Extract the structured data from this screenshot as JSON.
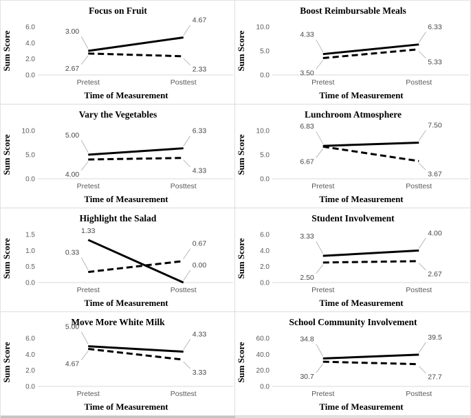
{
  "figure": {
    "description": "Grid of eight pretest-posttest line charts",
    "rows": 4,
    "cols": 2
  },
  "style": {
    "background": "#ffffff",
    "line_color": "#000000",
    "title_color": "#000000",
    "axis_label_color": "#000000",
    "tick_color": "#595959",
    "data_label_color": "#474747",
    "axis_line_color": "#d9d9d9",
    "leader_line_color": "#b7b7b7",
    "panel_border_color": "#dcdcdc",
    "bottom_bar_left": "#c4c4c4",
    "bottom_bar_right": "#e1e1e1"
  },
  "chart_data": [
    {
      "type": "line",
      "title": "Focus on Fruit",
      "ylabel": "Sum Score",
      "xlabel": "Time of Measurement",
      "categories": [
        "Pretest",
        "Posttest"
      ],
      "ylim": [
        0,
        6
      ],
      "yticks": {
        "values": [
          0,
          2,
          4,
          6
        ],
        "labels": [
          "0.0",
          "2.0",
          "4.0",
          "6.0"
        ]
      },
      "grid": false,
      "legend": "none",
      "series": [
        {
          "name": "solid line",
          "style": "solid",
          "values": [
            3.0,
            4.67
          ],
          "labels": [
            "3.00",
            "4.67"
          ],
          "label_pos": [
            "al",
            "ar"
          ]
        },
        {
          "name": "dashed line",
          "style": "dashed",
          "values": [
            2.67,
            2.33
          ],
          "labels": [
            "2.67",
            "2.33"
          ],
          "label_pos": [
            "bl",
            "br"
          ]
        }
      ]
    },
    {
      "type": "line",
      "title": "Boost Reimbursable Meals",
      "ylabel": "Sum Score",
      "xlabel": "Time of Measurement",
      "categories": [
        "Pretest",
        "Posttest"
      ],
      "ylim": [
        0,
        10
      ],
      "yticks": {
        "values": [
          0,
          5,
          10
        ],
        "labels": [
          "0.0",
          "5.0",
          "10.0"
        ]
      },
      "grid": false,
      "legend": "none",
      "series": [
        {
          "name": "solid line",
          "style": "solid",
          "values": [
            4.33,
            6.33
          ],
          "labels": [
            "4.33",
            "6.33"
          ],
          "label_pos": [
            "al",
            "ar"
          ]
        },
        {
          "name": "dashed line",
          "style": "dashed",
          "values": [
            3.5,
            5.33
          ],
          "labels": [
            "3.50",
            "5.33"
          ],
          "label_pos": [
            "bl",
            "br"
          ]
        }
      ]
    },
    {
      "type": "line",
      "title": "Vary the Vegetables",
      "ylabel": "Sum Score",
      "xlabel": "Time of Measurement",
      "categories": [
        "Pretest",
        "Posttest"
      ],
      "ylim": [
        0,
        10
      ],
      "yticks": {
        "values": [
          0,
          5,
          10
        ],
        "labels": [
          "0.0",
          "5.0",
          "10.0"
        ]
      },
      "grid": false,
      "legend": "none",
      "series": [
        {
          "name": "solid line",
          "style": "solid",
          "values": [
            5.0,
            6.33
          ],
          "labels": [
            "5.00",
            "6.33"
          ],
          "label_pos": [
            "al",
            "ar"
          ]
        },
        {
          "name": "dashed line",
          "style": "dashed",
          "values": [
            4.0,
            4.33
          ],
          "labels": [
            "4.00",
            "4.33"
          ],
          "label_pos": [
            "bl",
            "br"
          ]
        }
      ]
    },
    {
      "type": "line",
      "title": "Lunchroom Atmosphere",
      "ylabel": "Sum Score",
      "xlabel": "Time of Measurement",
      "categories": [
        "Pretest",
        "Posttest"
      ],
      "ylim": [
        0,
        10
      ],
      "yticks": {
        "values": [
          0,
          5,
          10
        ],
        "labels": [
          "0.0",
          "5.0",
          "10.0"
        ]
      },
      "grid": false,
      "legend": "none",
      "series": [
        {
          "name": "solid line",
          "style": "solid",
          "values": [
            6.83,
            7.5
          ],
          "labels": [
            "6.83",
            "7.50"
          ],
          "label_pos": [
            "al",
            "ar"
          ]
        },
        {
          "name": "dashed line",
          "style": "dashed",
          "values": [
            6.67,
            3.67
          ],
          "labels": [
            "6.67",
            "3.67"
          ],
          "label_pos": [
            "bl",
            "br"
          ]
        }
      ]
    },
    {
      "type": "line",
      "title": "Highlight the Salad",
      "ylabel": "Sum Score",
      "xlabel": "Time of Measurement",
      "categories": [
        "Pretest",
        "Posttest"
      ],
      "ylim": [
        0,
        1.5
      ],
      "yticks": {
        "values": [
          0,
          0.5,
          1.0,
          1.5
        ],
        "labels": [
          "0.0",
          "0.5",
          "1.0",
          "1.5"
        ]
      },
      "grid": false,
      "legend": "none",
      "series": [
        {
          "name": "solid line",
          "style": "solid",
          "values": [
            1.33,
            0.0
          ],
          "labels": [
            "1.33",
            "0.00"
          ],
          "label_pos": [
            "a",
            "ar"
          ]
        },
        {
          "name": "dashed line",
          "style": "dashed",
          "values": [
            0.33,
            0.67
          ],
          "labels": [
            "0.33",
            "0.67"
          ],
          "label_pos": [
            "al",
            "ar"
          ]
        }
      ]
    },
    {
      "type": "line",
      "title": "Student Involvement",
      "ylabel": "Sum Score",
      "xlabel": "Time of Measurement",
      "categories": [
        "Pretest",
        "Posttest"
      ],
      "ylim": [
        0,
        6
      ],
      "yticks": {
        "values": [
          0,
          2,
          4,
          6
        ],
        "labels": [
          "0.0",
          "2.0",
          "4.0",
          "6.0"
        ]
      },
      "grid": false,
      "legend": "none",
      "series": [
        {
          "name": "solid line",
          "style": "solid",
          "values": [
            3.33,
            4.0
          ],
          "labels": [
            "3.33",
            "4.00"
          ],
          "label_pos": [
            "al",
            "ar"
          ]
        },
        {
          "name": "dashed line",
          "style": "dashed",
          "values": [
            2.5,
            2.67
          ],
          "labels": [
            "2.50",
            "2.67"
          ],
          "label_pos": [
            "bl",
            "br"
          ]
        }
      ]
    },
    {
      "type": "line",
      "title": "Move More White Milk",
      "ylabel": "Sum Score",
      "xlabel": "Time of Measurement",
      "categories": [
        "Pretest",
        "Posttest"
      ],
      "ylim": [
        0,
        6
      ],
      "yticks": {
        "values": [
          0,
          2,
          4,
          6
        ],
        "labels": [
          "0.0",
          "2.0",
          "4.0",
          "6.0"
        ]
      },
      "grid": false,
      "legend": "none",
      "series": [
        {
          "name": "solid line",
          "style": "solid",
          "values": [
            5.0,
            4.33
          ],
          "labels": [
            "5.00",
            "4.33"
          ],
          "label_pos": [
            "al",
            "ar"
          ]
        },
        {
          "name": "dashed line",
          "style": "dashed",
          "values": [
            4.67,
            3.33
          ],
          "labels": [
            "4.67",
            "3.33"
          ],
          "label_pos": [
            "bl",
            "br"
          ]
        }
      ]
    },
    {
      "type": "line",
      "title": "School Community Involvement",
      "ylabel": "Sum Score",
      "xlabel": "Time of Measurement",
      "categories": [
        "Pretest",
        "Posttest"
      ],
      "ylim": [
        0,
        60
      ],
      "yticks": {
        "values": [
          0,
          20,
          40,
          60
        ],
        "labels": [
          "0.0",
          "20.0",
          "40.0",
          "60.0"
        ]
      },
      "grid": false,
      "legend": "none",
      "series": [
        {
          "name": "solid line",
          "style": "solid",
          "values": [
            34.8,
            39.5
          ],
          "labels": [
            "34.8",
            "39.5"
          ],
          "label_pos": [
            "al",
            "ar"
          ]
        },
        {
          "name": "dashed line",
          "style": "dashed",
          "values": [
            30.7,
            27.7
          ],
          "labels": [
            "30.7",
            "27.7"
          ],
          "label_pos": [
            "bl",
            "br"
          ]
        }
      ]
    }
  ]
}
